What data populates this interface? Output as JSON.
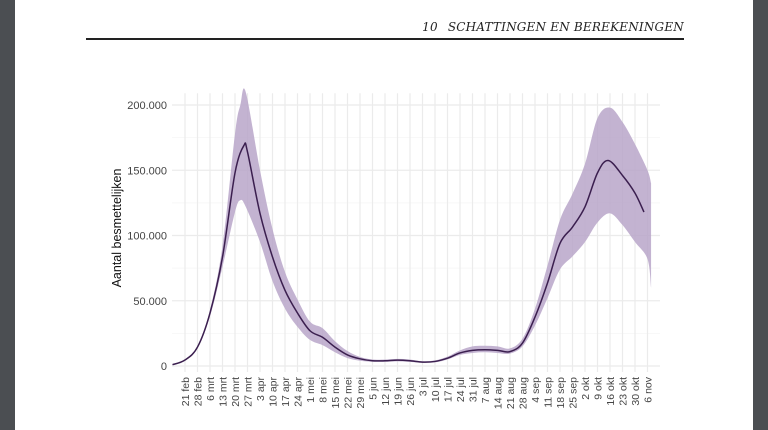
{
  "header": {
    "chapter_number": "10",
    "chapter_title": "SCHATTINGEN EN BEREKENINGEN"
  },
  "colors": {
    "band": "#b9a6c9",
    "line": "#3b1f4f",
    "grid": "#ebebeb",
    "page": "#ffffff",
    "margin": "#4b4e52"
  },
  "chart_data": {
    "type": "area",
    "xlabel": "",
    "ylabel": "Aantal besmettelijken",
    "ylim": [
      0,
      200000
    ],
    "yticks": [
      0,
      50000,
      100000,
      150000,
      200000
    ],
    "ytick_labels": [
      "0",
      "50.000",
      "100.000",
      "150.000",
      "200.000"
    ],
    "xtick_labels": [
      "21 feb",
      "28 feb",
      "6 mrt",
      "13 mrt",
      "20 mrt",
      "27 mrt",
      "3 apr",
      "10 apr",
      "17 apr",
      "24 apr",
      "1 mei",
      "8 mei",
      "15 mei",
      "22 mei",
      "29 mei",
      "5 jun",
      "12 jun",
      "19 jun",
      "26 jun",
      "3 jul",
      "10 jul",
      "17 jul",
      "24 jul",
      "31 jul",
      "7 aug",
      "14 aug",
      "21 aug",
      "28 aug",
      "4 sep",
      "11 sep",
      "18 sep",
      "25 sep",
      "2 okt",
      "9 okt",
      "16 okt",
      "23 okt",
      "30 okt",
      "6 nov"
    ],
    "grid": true,
    "line": {
      "x": [
        "14 feb",
        "21 feb",
        "28 feb",
        "6 mrt",
        "13 mrt",
        "20 mrt",
        "25 mrt",
        "27 mrt",
        "3 apr",
        "10 apr",
        "17 apr",
        "24 apr",
        "1 mei",
        "8 mei",
        "15 mei",
        "22 mei",
        "29 mei",
        "5 jun",
        "12 jun",
        "19 jun",
        "26 jun",
        "3 jul",
        "10 jul",
        "17 jul",
        "24 jul",
        "31 jul",
        "7 aug",
        "14 aug",
        "21 aug",
        "28 aug",
        "4 sep",
        "11 sep",
        "18 sep",
        "25 sep",
        "2 okt",
        "9 okt",
        "15 okt",
        "23 okt",
        "30 okt",
        "4 nov"
      ],
      "y": [
        1000,
        4600,
        14500,
        40600,
        83500,
        148000,
        169000,
        164000,
        117000,
        83500,
        58000,
        40600,
        27000,
        22000,
        14500,
        8500,
        5500,
        4000,
        4000,
        4500,
        4000,
        3000,
        3500,
        6000,
        10000,
        12000,
        12500,
        12000,
        11000,
        17600,
        37500,
        63600,
        94000,
        106500,
        122000,
        148000,
        157500,
        146000,
        132500,
        118000
      ]
    },
    "band": {
      "x": [
        "14 feb",
        "21 feb",
        "28 feb",
        "6 mrt",
        "13 mrt",
        "20 mrt",
        "23 mrt",
        "26 mrt",
        "3 apr",
        "10 apr",
        "17 apr",
        "24 apr",
        "1 mei",
        "8 mei",
        "15 mei",
        "22 mei",
        "29 mei",
        "5 jun",
        "12 jun",
        "19 jun",
        "26 jun",
        "3 jul",
        "10 jul",
        "17 jul",
        "24 jul",
        "31 jul",
        "7 aug",
        "14 aug",
        "21 aug",
        "28 aug",
        "4 sep",
        "11 sep",
        "18 sep",
        "25 sep",
        "2 okt",
        "9 okt",
        "16 okt",
        "23 okt",
        "30 okt",
        "6 nov",
        "8 nov"
      ],
      "lower": [
        900,
        4300,
        13500,
        38000,
        76000,
        118000,
        127000,
        122000,
        95000,
        65000,
        44000,
        30000,
        20000,
        16000,
        10500,
        6000,
        4000,
        3200,
        3200,
        3500,
        3200,
        2500,
        2800,
        5000,
        8500,
        10000,
        10500,
        10000,
        9500,
        15000,
        31000,
        52000,
        74000,
        84000,
        95000,
        110000,
        117000,
        108000,
        95000,
        82000,
        60000
      ],
      "upper": [
        1100,
        5000,
        15500,
        43000,
        92000,
        178000,
        200000,
        210000,
        150000,
        105000,
        72000,
        51000,
        34000,
        29000,
        19000,
        11500,
        7000,
        5000,
        5000,
        5500,
        5000,
        3600,
        4300,
        7200,
        12000,
        15000,
        15500,
        15000,
        13500,
        21000,
        44000,
        77000,
        112000,
        132000,
        155000,
        190000,
        198000,
        187000,
        170000,
        150000,
        140000
      ]
    }
  }
}
